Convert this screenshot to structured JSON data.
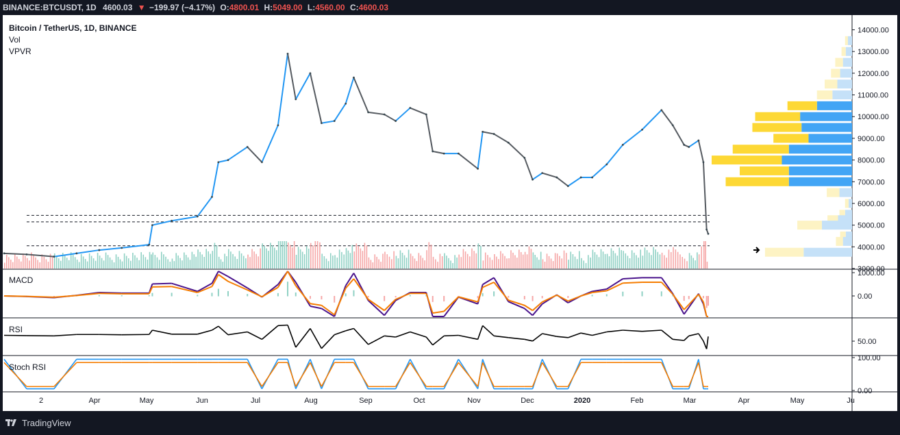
{
  "header": {
    "symbol": "BINANCE:BTCUSDT, 1D",
    "last": "4600.03",
    "arrow": "▼",
    "change": "−199.97 (−4.17%)",
    "o_label": "O:",
    "o_value": "4800.01",
    "h_label": "H:",
    "h_value": "5049.00",
    "l_label": "L:",
    "l_value": "4560.00",
    "c_label": "C:",
    "c_value": "4600.03"
  },
  "legend": {
    "title": "Bitcoin / TetherUS, 1D, BINANCE",
    "vol": "Vol",
    "vpvr": "VPVR"
  },
  "footer": {
    "brand": "TradingView"
  },
  "colors": {
    "up": "#2196f3",
    "down": "#555a60",
    "vol_up": "#8fd1c4",
    "vol_down": "#f6a6a6",
    "macd_line": "#4a148c",
    "signal_line": "#f57c00",
    "rsi_line": "#000000",
    "stoch_k": "#2196f3",
    "stoch_d": "#f57c00",
    "vp_up": "#42a5f5",
    "vp_down": "#fdd835",
    "vp_up_light": "#c5e1f8",
    "vp_down_light": "#fdf3c4"
  },
  "chart_data": {
    "type": "line",
    "title": "Bitcoin / TetherUS, 1D, BINANCE",
    "series": [
      {
        "name": "Bitcoin / TetherUS",
        "x": [
          "2019-01-01",
          "2019-01-15",
          "2019-02-01",
          "2019-02-15",
          "2019-03-01",
          "2019-03-15",
          "2019-04-01",
          "2019-04-03",
          "2019-04-15",
          "2019-05-01",
          "2019-05-10",
          "2019-05-14",
          "2019-05-20",
          "2019-06-01",
          "2019-06-10",
          "2019-06-20",
          "2019-06-26",
          "2019-07-01",
          "2019-07-10",
          "2019-07-17",
          "2019-07-25",
          "2019-08-01",
          "2019-08-06",
          "2019-08-15",
          "2019-08-25",
          "2019-09-01",
          "2019-09-10",
          "2019-09-20",
          "2019-09-24",
          "2019-10-01",
          "2019-10-10",
          "2019-10-22",
          "2019-10-25",
          "2019-11-01",
          "2019-11-10",
          "2019-11-20",
          "2019-11-25",
          "2019-12-01",
          "2019-12-10",
          "2019-12-17",
          "2019-12-25",
          "2020-01-01",
          "2020-01-10",
          "2020-01-20",
          "2020-02-01",
          "2020-02-13",
          "2020-02-20",
          "2020-02-27",
          "2020-03-01",
          "2020-03-07",
          "2020-03-10",
          "2020-03-12",
          "2020-03-13"
        ],
        "y": [
          3700,
          3650,
          3550,
          3700,
          3850,
          3950,
          4100,
          5000,
          5200,
          5400,
          6300,
          7900,
          8000,
          8600,
          7900,
          9600,
          12900,
          10800,
          12000,
          9700,
          9800,
          10600,
          11800,
          10200,
          10100,
          9800,
          10400,
          10100,
          8400,
          8300,
          8300,
          7600,
          9300,
          9200,
          8800,
          8100,
          7100,
          7400,
          7200,
          6800,
          7200,
          7200,
          7800,
          8700,
          9400,
          10300,
          9600,
          8700,
          8600,
          8900,
          7900,
          4800,
          4600
        ]
      }
    ],
    "price_axis": {
      "ticks": [
        3000,
        4000,
        5000,
        6000,
        7000,
        8000,
        9000,
        10000,
        11000,
        12000,
        13000,
        14000
      ],
      "labels": [
        "3000.00",
        "4000.00",
        "5000.00",
        "6000.00",
        "7000.00",
        "8000.00",
        "9000.00",
        "10000.00",
        "11000.00",
        "12000.00",
        "13000.00",
        "14000.00"
      ],
      "ylim": [
        3000,
        14300
      ]
    },
    "x_axis": {
      "labels": [
        "2",
        "Apr",
        "May",
        "Jun",
        "Jul",
        "Aug",
        "Sep",
        "Oct",
        "Nov",
        "Dec",
        "2020",
        "Feb",
        "Mar",
        "Apr",
        "May",
        "Ju"
      ]
    },
    "horizontal_levels": [
      5450,
      5150,
      4050
    ],
    "volume_profile": {
      "rows": [
        {
          "price": 13500,
          "up": 60,
          "down": 40
        },
        {
          "price": 13000,
          "up": 90,
          "down": 60
        },
        {
          "price": 12500,
          "up": 130,
          "down": 110
        },
        {
          "price": 12000,
          "up": 170,
          "down": 130
        },
        {
          "price": 11500,
          "up": 210,
          "down": 180
        },
        {
          "price": 11000,
          "up": 280,
          "down": 220
        },
        {
          "price": 10500,
          "up": 500,
          "down": 420
        },
        {
          "price": 10000,
          "up": 740,
          "down": 640
        },
        {
          "price": 9500,
          "up": 720,
          "down": 700
        },
        {
          "price": 9000,
          "up": 620,
          "down": 500
        },
        {
          "price": 8500,
          "up": 900,
          "down": 800
        },
        {
          "price": 8000,
          "up": 1000,
          "down": 1000
        },
        {
          "price": 7500,
          "up": 900,
          "down": 700
        },
        {
          "price": 7000,
          "up": 900,
          "down": 900
        },
        {
          "price": 6500,
          "up": 180,
          "down": 180
        },
        {
          "price": 6000,
          "up": 50,
          "down": 50
        },
        {
          "price": 5500,
          "up": 100,
          "down": 80
        },
        {
          "price": 5250,
          "up": 200,
          "down": 150
        },
        {
          "price": 5000,
          "up": 430,
          "down": 350
        },
        {
          "price": 4500,
          "up": 90,
          "down": 80
        },
        {
          "price": 4250,
          "up": 130,
          "down": 100
        },
        {
          "price": 3750,
          "up": 690,
          "down": 550
        }
      ]
    },
    "macd": {
      "title": "MACD",
      "ticks": [
        1000,
        0
      ],
      "labels": [
        "1000.00",
        "0.00"
      ]
    },
    "rsi": {
      "title": "RSI",
      "ticks": [
        50
      ],
      "labels": [
        "50.00"
      ]
    },
    "stoch_rsi": {
      "title": "Stoch RSI",
      "ticks": [
        100,
        0
      ],
      "labels": [
        "100.00",
        "0.00"
      ]
    }
  }
}
